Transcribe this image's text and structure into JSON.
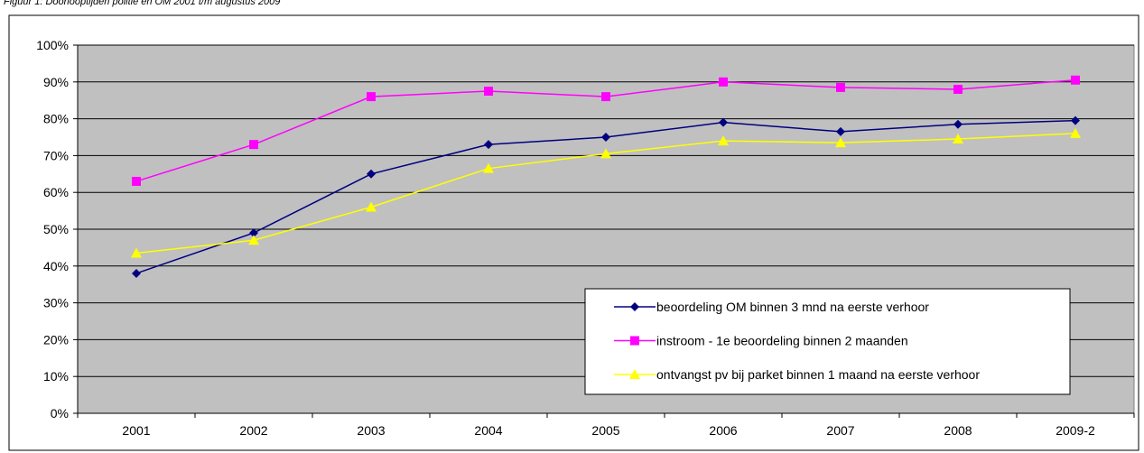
{
  "caption": "Figuur 1: Doorlooptijden politie en OM 2001 t/m augustus 2009",
  "chart_data": {
    "type": "line",
    "categories": [
      "2001",
      "2002",
      "2003",
      "2004",
      "2005",
      "2006",
      "2007",
      "2008",
      "2009-2"
    ],
    "ylim": [
      0,
      100
    ],
    "yticks": [
      "0%",
      "10%",
      "20%",
      "30%",
      "40%",
      "50%",
      "60%",
      "70%",
      "80%",
      "90%",
      "100%"
    ],
    "grid": true,
    "legend_position": "bottom-right",
    "plot_background": "#c0c0c0",
    "series": [
      {
        "name": "beoordeling OM binnen 3 mnd na eerste verhoor",
        "color": "#000080",
        "marker": "diamond",
        "values": [
          38,
          49,
          65,
          73,
          75,
          79,
          76.5,
          78.5,
          79.5
        ]
      },
      {
        "name": "instroom - 1e beoordeling binnen 2 maanden",
        "color": "#ff00ff",
        "marker": "square",
        "values": [
          63,
          73,
          86,
          87.5,
          86,
          90,
          88.5,
          88,
          90.5
        ]
      },
      {
        "name": "ontvangst pv bij parket binnen 1 maand na eerste verhoor",
        "color": "#ffff00",
        "marker": "triangle",
        "values": [
          43.5,
          47,
          56,
          66.5,
          70.5,
          74,
          73.5,
          74.5,
          76
        ]
      }
    ]
  }
}
